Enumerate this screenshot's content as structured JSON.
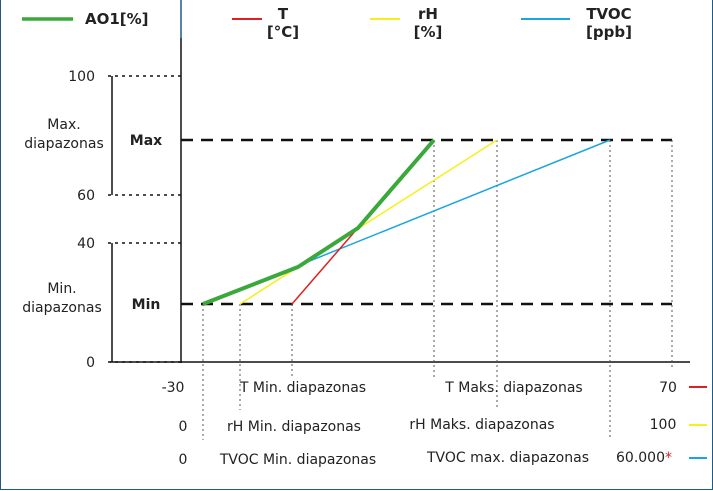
{
  "legend": {
    "ao1": {
      "label": "AO1[%]",
      "color": "#3aa83a"
    },
    "t": {
      "label_line1": "T",
      "label_line2": "[°C]",
      "color": "#e02020"
    },
    "rh": {
      "label_line1": "rH",
      "label_line2": "[%]",
      "color": "#f5f01a"
    },
    "tvoc": {
      "label_line1": "TVOC",
      "label_line2": "[ppb]",
      "color": "#1aa5e0"
    }
  },
  "y_axis": {
    "tick_100": "100",
    "tick_60": "60",
    "tick_40": "40",
    "tick_0": "0",
    "max_range_label_line1": "Max.",
    "max_range_label_line2": "diapazonas",
    "min_range_label_line1": "Min.",
    "min_range_label_line2": "diapazonas",
    "max_label": "Max",
    "min_label": "Min"
  },
  "x_axis": {
    "row_t": {
      "start": "-30",
      "min_label": "T Min. diapazonas",
      "max_label": "T Maks. diapazonas",
      "end": "70"
    },
    "row_rh": {
      "start": "0",
      "min_label": "rH Min. diapazonas",
      "max_label": "rH Maks. diapazonas",
      "end": "100"
    },
    "row_tvoc": {
      "start": "0",
      "min_label": "TVOC Min. diapazonas",
      "max_label": "TVOC max. diapazonas",
      "end": "60.000",
      "footnote": "*"
    }
  },
  "colors": {
    "axis": "#111111",
    "frame": "#1d5b86",
    "footnote": "#e02020"
  }
}
